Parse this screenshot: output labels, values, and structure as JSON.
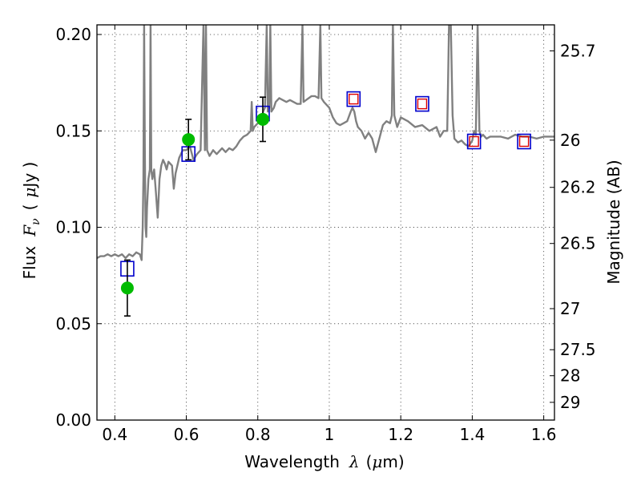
{
  "chart_data": {
    "type": "scatter",
    "title": "",
    "xlabel": {
      "prefix": "Wavelength",
      "symbol": "λ",
      "unit_open": "(",
      "unit_mu": "μ",
      "unit_rest": "m)"
    },
    "ylabel": {
      "prefix": "Flux",
      "symbol": "F",
      "sub": "ν",
      "unit_open": "(",
      "unit_mu": "μ",
      "unit_rest": "Jy )"
    },
    "ylabel_right": "Magnitude (AB)",
    "xlim": [
      0.35,
      1.63
    ],
    "ylim": [
      0.0,
      0.205
    ],
    "grid": true,
    "grid_style": "dotted",
    "xticks": [
      0.4,
      0.6,
      0.8,
      1.0,
      1.2,
      1.4,
      1.6
    ],
    "xtick_labels": [
      "0.4",
      "0.6",
      "0.8",
      "1",
      "1.2",
      "1.4",
      "1.6"
    ],
    "yticks": [
      0.0,
      0.05,
      0.1,
      0.15,
      0.2
    ],
    "ytick_labels": [
      "0.00",
      "0.05",
      "0.10",
      "0.15",
      "0.20"
    ],
    "right_ticks": [
      {
        "label": "25.7",
        "flux": 0.1915
      },
      {
        "label": "26",
        "flux": 0.1452
      },
      {
        "label": "26.2",
        "flux": 0.1207
      },
      {
        "label": "26.5",
        "flux": 0.0916
      },
      {
        "label": "27",
        "flux": 0.0578
      },
      {
        "label": "27.5",
        "flux": 0.0365
      },
      {
        "label": "28",
        "flux": 0.023
      },
      {
        "label": "29",
        "flux": 0.0092
      }
    ],
    "colors": {
      "sed": "#808080",
      "observed": "#00bb00",
      "model_box": "#0000cc",
      "upper_box": "#dd0000",
      "errorbar": "#000000",
      "grid": "#555555"
    },
    "series": [
      {
        "kind": "observed",
        "points": [
          {
            "x": 0.435,
            "y": 0.0685,
            "yerr": 0.0145
          },
          {
            "x": 0.606,
            "y": 0.1455,
            "yerr": 0.0105
          },
          {
            "x": 0.814,
            "y": 0.156,
            "yerr": 0.0115
          }
        ]
      },
      {
        "kind": "model",
        "points": [
          {
            "x": 0.435,
            "y": 0.0785
          },
          {
            "x": 0.606,
            "y": 0.138
          },
          {
            "x": 0.814,
            "y": 0.159
          },
          {
            "x": 1.068,
            "y": 0.1665
          },
          {
            "x": 1.26,
            "y": 0.164
          },
          {
            "x": 1.405,
            "y": 0.1445
          },
          {
            "x": 1.545,
            "y": 0.1445
          }
        ]
      },
      {
        "kind": "model_inner",
        "points": [
          {
            "x": 1.068,
            "y": 0.1665
          },
          {
            "x": 1.26,
            "y": 0.164
          },
          {
            "x": 1.405,
            "y": 0.1445
          },
          {
            "x": 1.545,
            "y": 0.1445
          }
        ]
      },
      {
        "kind": "sed",
        "points": [
          [
            0.35,
            0.084
          ],
          [
            0.36,
            0.085
          ],
          [
            0.37,
            0.085
          ],
          [
            0.38,
            0.086
          ],
          [
            0.39,
            0.085
          ],
          [
            0.4,
            0.086
          ],
          [
            0.41,
            0.085
          ],
          [
            0.42,
            0.086
          ],
          [
            0.43,
            0.084
          ],
          [
            0.44,
            0.086
          ],
          [
            0.45,
            0.085
          ],
          [
            0.46,
            0.087
          ],
          [
            0.47,
            0.086
          ],
          [
            0.475,
            0.083
          ],
          [
            0.478,
            0.1
          ],
          [
            0.48,
            0.125
          ],
          [
            0.482,
            0.205
          ],
          [
            0.484,
            0.14
          ],
          [
            0.486,
            0.1
          ],
          [
            0.488,
            0.095
          ],
          [
            0.49,
            0.11
          ],
          [
            0.494,
            0.125
          ],
          [
            0.498,
            0.13
          ],
          [
            0.5,
            0.205
          ],
          [
            0.502,
            0.13
          ],
          [
            0.505,
            0.125
          ],
          [
            0.51,
            0.13
          ],
          [
            0.515,
            0.118
          ],
          [
            0.52,
            0.105
          ],
          [
            0.525,
            0.125
          ],
          [
            0.53,
            0.132
          ],
          [
            0.535,
            0.135
          ],
          [
            0.54,
            0.133
          ],
          [
            0.545,
            0.13
          ],
          [
            0.55,
            0.134
          ],
          [
            0.56,
            0.132
          ],
          [
            0.565,
            0.12
          ],
          [
            0.57,
            0.128
          ],
          [
            0.58,
            0.136
          ],
          [
            0.59,
            0.14
          ],
          [
            0.6,
            0.14
          ],
          [
            0.61,
            0.142
          ],
          [
            0.62,
            0.135
          ],
          [
            0.63,
            0.138
          ],
          [
            0.64,
            0.14
          ],
          [
            0.648,
            0.205
          ],
          [
            0.652,
            0.14
          ],
          [
            0.655,
            0.205
          ],
          [
            0.658,
            0.14
          ],
          [
            0.665,
            0.137
          ],
          [
            0.675,
            0.14
          ],
          [
            0.685,
            0.138
          ],
          [
            0.695,
            0.14
          ],
          [
            0.7,
            0.141
          ],
          [
            0.71,
            0.139
          ],
          [
            0.72,
            0.141
          ],
          [
            0.73,
            0.14
          ],
          [
            0.74,
            0.142
          ],
          [
            0.75,
            0.145
          ],
          [
            0.76,
            0.147
          ],
          [
            0.77,
            0.148
          ],
          [
            0.78,
            0.15
          ],
          [
            0.783,
            0.165
          ],
          [
            0.786,
            0.15
          ],
          [
            0.79,
            0.152
          ],
          [
            0.8,
            0.154
          ],
          [
            0.81,
            0.155
          ],
          [
            0.815,
            0.16
          ],
          [
            0.82,
            0.162
          ],
          [
            0.825,
            0.205
          ],
          [
            0.828,
            0.16
          ],
          [
            0.832,
            0.162
          ],
          [
            0.835,
            0.205
          ],
          [
            0.838,
            0.16
          ],
          [
            0.845,
            0.162
          ],
          [
            0.85,
            0.165
          ],
          [
            0.86,
            0.167
          ],
          [
            0.87,
            0.166
          ],
          [
            0.88,
            0.165
          ],
          [
            0.89,
            0.166
          ],
          [
            0.9,
            0.165
          ],
          [
            0.91,
            0.164
          ],
          [
            0.92,
            0.164
          ],
          [
            0.925,
            0.205
          ],
          [
            0.928,
            0.165
          ],
          [
            0.935,
            0.166
          ],
          [
            0.95,
            0.168
          ],
          [
            0.96,
            0.168
          ],
          [
            0.97,
            0.167
          ],
          [
            0.975,
            0.205
          ],
          [
            0.978,
            0.167
          ],
          [
            0.985,
            0.165
          ],
          [
            1.0,
            0.162
          ],
          [
            1.01,
            0.157
          ],
          [
            1.02,
            0.154
          ],
          [
            1.03,
            0.153
          ],
          [
            1.04,
            0.154
          ],
          [
            1.05,
            0.155
          ],
          [
            1.06,
            0.16
          ],
          [
            1.065,
            0.162
          ],
          [
            1.07,
            0.16
          ],
          [
            1.075,
            0.155
          ],
          [
            1.08,
            0.152
          ],
          [
            1.09,
            0.15
          ],
          [
            1.1,
            0.146
          ],
          [
            1.11,
            0.149
          ],
          [
            1.12,
            0.146
          ],
          [
            1.13,
            0.139
          ],
          [
            1.14,
            0.146
          ],
          [
            1.15,
            0.153
          ],
          [
            1.16,
            0.155
          ],
          [
            1.17,
            0.154
          ],
          [
            1.175,
            0.158
          ],
          [
            1.178,
            0.205
          ],
          [
            1.182,
            0.158
          ],
          [
            1.19,
            0.152
          ],
          [
            1.2,
            0.157
          ],
          [
            1.21,
            0.156
          ],
          [
            1.22,
            0.155
          ],
          [
            1.24,
            0.152
          ],
          [
            1.26,
            0.153
          ],
          [
            1.28,
            0.15
          ],
          [
            1.3,
            0.152
          ],
          [
            1.31,
            0.147
          ],
          [
            1.32,
            0.15
          ],
          [
            1.33,
            0.15
          ],
          [
            1.335,
            0.205
          ],
          [
            1.34,
            0.205
          ],
          [
            1.345,
            0.158
          ],
          [
            1.35,
            0.146
          ],
          [
            1.36,
            0.144
          ],
          [
            1.37,
            0.145
          ],
          [
            1.38,
            0.143
          ],
          [
            1.39,
            0.142
          ],
          [
            1.4,
            0.145
          ],
          [
            1.405,
            0.15
          ],
          [
            1.41,
            0.148
          ],
          [
            1.415,
            0.205
          ],
          [
            1.42,
            0.15
          ],
          [
            1.425,
            0.147
          ],
          [
            1.43,
            0.148
          ],
          [
            1.44,
            0.146
          ],
          [
            1.45,
            0.147
          ],
          [
            1.46,
            0.147
          ],
          [
            1.48,
            0.147
          ],
          [
            1.5,
            0.146
          ],
          [
            1.52,
            0.148
          ],
          [
            1.54,
            0.147
          ],
          [
            1.56,
            0.147
          ],
          [
            1.58,
            0.146
          ],
          [
            1.6,
            0.147
          ],
          [
            1.63,
            0.147
          ]
        ]
      }
    ]
  }
}
